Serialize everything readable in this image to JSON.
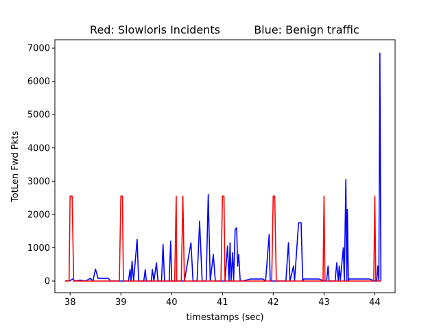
{
  "chart_data": {
    "type": "line",
    "title_parts": [
      "Red: Slowloris Incidents",
      "Blue: Benign traffic"
    ],
    "xlabel": "timestamps (sec)",
    "ylabel": "TotLen Fwd Pkts",
    "xlim": [
      37.7,
      44.4
    ],
    "ylim": [
      -350,
      7250
    ],
    "xticks": [
      38,
      39,
      40,
      41,
      42,
      43,
      44
    ],
    "yticks": [
      0,
      1000,
      2000,
      3000,
      4000,
      5000,
      6000,
      7000
    ],
    "grid": false,
    "series": [
      {
        "color": "#0000ff",
        "points": [
          [
            37.9,
            0
          ],
          [
            38.0,
            10
          ],
          [
            38.05,
            60
          ],
          [
            38.1,
            0
          ],
          [
            38.2,
            30
          ],
          [
            38.3,
            0
          ],
          [
            38.4,
            80
          ],
          [
            38.45,
            0
          ],
          [
            38.5,
            360
          ],
          [
            38.55,
            80
          ],
          [
            38.75,
            80
          ],
          [
            38.8,
            0
          ],
          [
            39.0,
            0
          ],
          [
            39.15,
            0
          ],
          [
            39.18,
            350
          ],
          [
            39.2,
            0
          ],
          [
            39.22,
            600
          ],
          [
            39.25,
            0
          ],
          [
            39.32,
            1250
          ],
          [
            39.35,
            0
          ],
          [
            39.45,
            0
          ],
          [
            39.48,
            350
          ],
          [
            39.5,
            0
          ],
          [
            39.6,
            0
          ],
          [
            39.62,
            350
          ],
          [
            39.65,
            0
          ],
          [
            39.7,
            550
          ],
          [
            39.73,
            0
          ],
          [
            39.8,
            0
          ],
          [
            39.83,
            1100
          ],
          [
            39.86,
            0
          ],
          [
            39.95,
            0
          ],
          [
            39.98,
            1200
          ],
          [
            40.0,
            0
          ],
          [
            40.1,
            0
          ],
          [
            40.25,
            0
          ],
          [
            40.38,
            1150
          ],
          [
            40.42,
            0
          ],
          [
            40.5,
            0
          ],
          [
            40.55,
            1800
          ],
          [
            40.6,
            0
          ],
          [
            40.68,
            0
          ],
          [
            40.72,
            2600
          ],
          [
            40.76,
            0
          ],
          [
            40.82,
            800
          ],
          [
            40.86,
            0
          ],
          [
            41.05,
            0
          ],
          [
            41.1,
            1050
          ],
          [
            41.13,
            0
          ],
          [
            41.15,
            1150
          ],
          [
            41.17,
            0
          ],
          [
            41.2,
            850
          ],
          [
            41.22,
            0
          ],
          [
            41.25,
            1550
          ],
          [
            41.28,
            1600
          ],
          [
            41.3,
            450
          ],
          [
            41.32,
            800
          ],
          [
            41.35,
            0
          ],
          [
            41.4,
            0
          ],
          [
            41.55,
            60
          ],
          [
            41.6,
            60
          ],
          [
            41.7,
            60
          ],
          [
            41.8,
            60
          ],
          [
            41.85,
            0
          ],
          [
            41.92,
            1400
          ],
          [
            41.94,
            0
          ],
          [
            42.0,
            0
          ],
          [
            42.25,
            0
          ],
          [
            42.3,
            1150
          ],
          [
            42.33,
            0
          ],
          [
            42.4,
            450
          ],
          [
            42.42,
            0
          ],
          [
            42.5,
            1750
          ],
          [
            42.55,
            1750
          ],
          [
            42.58,
            0
          ],
          [
            42.6,
            60
          ],
          [
            42.7,
            60
          ],
          [
            42.8,
            60
          ],
          [
            42.9,
            60
          ],
          [
            43.0,
            0
          ],
          [
            43.05,
            0
          ],
          [
            43.08,
            450
          ],
          [
            43.1,
            0
          ],
          [
            43.22,
            0
          ],
          [
            43.25,
            550
          ],
          [
            43.28,
            0
          ],
          [
            43.3,
            450
          ],
          [
            43.32,
            0
          ],
          [
            43.38,
            1000
          ],
          [
            43.4,
            0
          ],
          [
            43.43,
            3050
          ],
          [
            43.45,
            0
          ],
          [
            43.46,
            2150
          ],
          [
            43.48,
            0
          ],
          [
            43.5,
            60
          ],
          [
            43.6,
            60
          ],
          [
            43.7,
            60
          ],
          [
            43.8,
            60
          ],
          [
            43.9,
            60
          ],
          [
            44.0,
            0
          ],
          [
            44.04,
            0
          ],
          [
            44.06,
            450
          ],
          [
            44.08,
            0
          ],
          [
            44.1,
            6850
          ],
          [
            44.12,
            0
          ]
        ]
      },
      {
        "color": "#ff0000",
        "points": [
          [
            37.9,
            0
          ],
          [
            37.98,
            0
          ],
          [
            38.0,
            2550
          ],
          [
            38.04,
            2550
          ],
          [
            38.07,
            0
          ],
          [
            38.97,
            0
          ],
          [
            39.0,
            2550
          ],
          [
            39.03,
            2550
          ],
          [
            39.05,
            0
          ],
          [
            40.06,
            0
          ],
          [
            40.09,
            2550
          ],
          [
            40.1,
            0
          ],
          [
            40.19,
            0
          ],
          [
            40.22,
            2550
          ],
          [
            40.25,
            0
          ],
          [
            40.97,
            0
          ],
          [
            41.0,
            2550
          ],
          [
            41.03,
            2550
          ],
          [
            41.05,
            0
          ],
          [
            41.97,
            0
          ],
          [
            42.0,
            2550
          ],
          [
            42.03,
            2550
          ],
          [
            42.06,
            0
          ],
          [
            42.98,
            0
          ],
          [
            43.0,
            2550
          ],
          [
            43.02,
            0
          ],
          [
            43.98,
            0
          ],
          [
            44.0,
            2550
          ],
          [
            44.02,
            0
          ],
          [
            44.12,
            0
          ]
        ]
      }
    ]
  }
}
